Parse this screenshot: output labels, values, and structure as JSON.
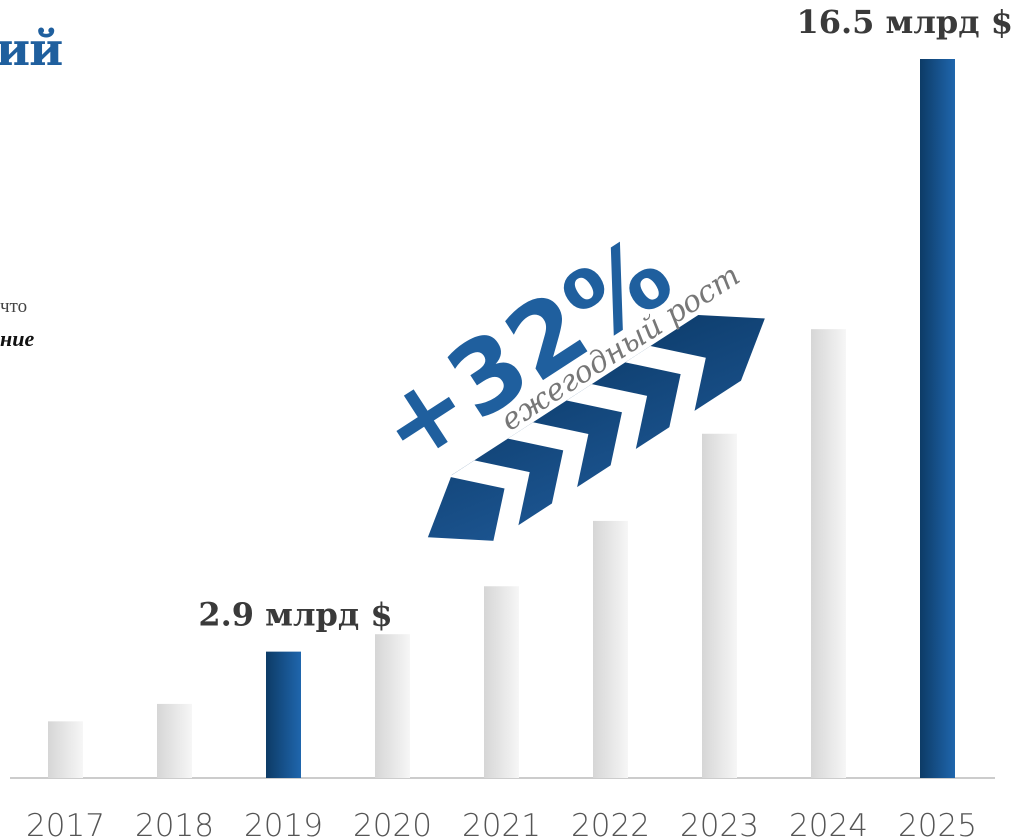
{
  "fragments": {
    "title_tail": "ий",
    "line1_tail": "что",
    "line2_tail": "ние"
  },
  "colors": {
    "highlight": "#1f5f9e",
    "highlight_dark": "#0d3b66",
    "bar_gray_light": "#f4f4f4",
    "bar_gray_dark": "#d6d6d6",
    "axis": "#cccccc",
    "arrow": "#1d5a95"
  },
  "growth": {
    "value": "+32%",
    "caption": "ежегодный рост"
  },
  "chart_data": {
    "type": "bar",
    "categories": [
      "2017",
      "2018",
      "2019",
      "2020",
      "2021",
      "2022",
      "2023",
      "2024",
      "2025"
    ],
    "values": [
      1.3,
      1.7,
      2.9,
      3.3,
      4.4,
      5.9,
      7.9,
      10.3,
      16.5
    ],
    "highlighted": [
      "2019",
      "2025"
    ],
    "value_labels": [
      {
        "category": "2019",
        "text": "2.9 млрд $"
      },
      {
        "category": "2025",
        "text": "16.5 млрд $"
      }
    ],
    "ylim": [
      0,
      16.5
    ],
    "grid": false
  }
}
